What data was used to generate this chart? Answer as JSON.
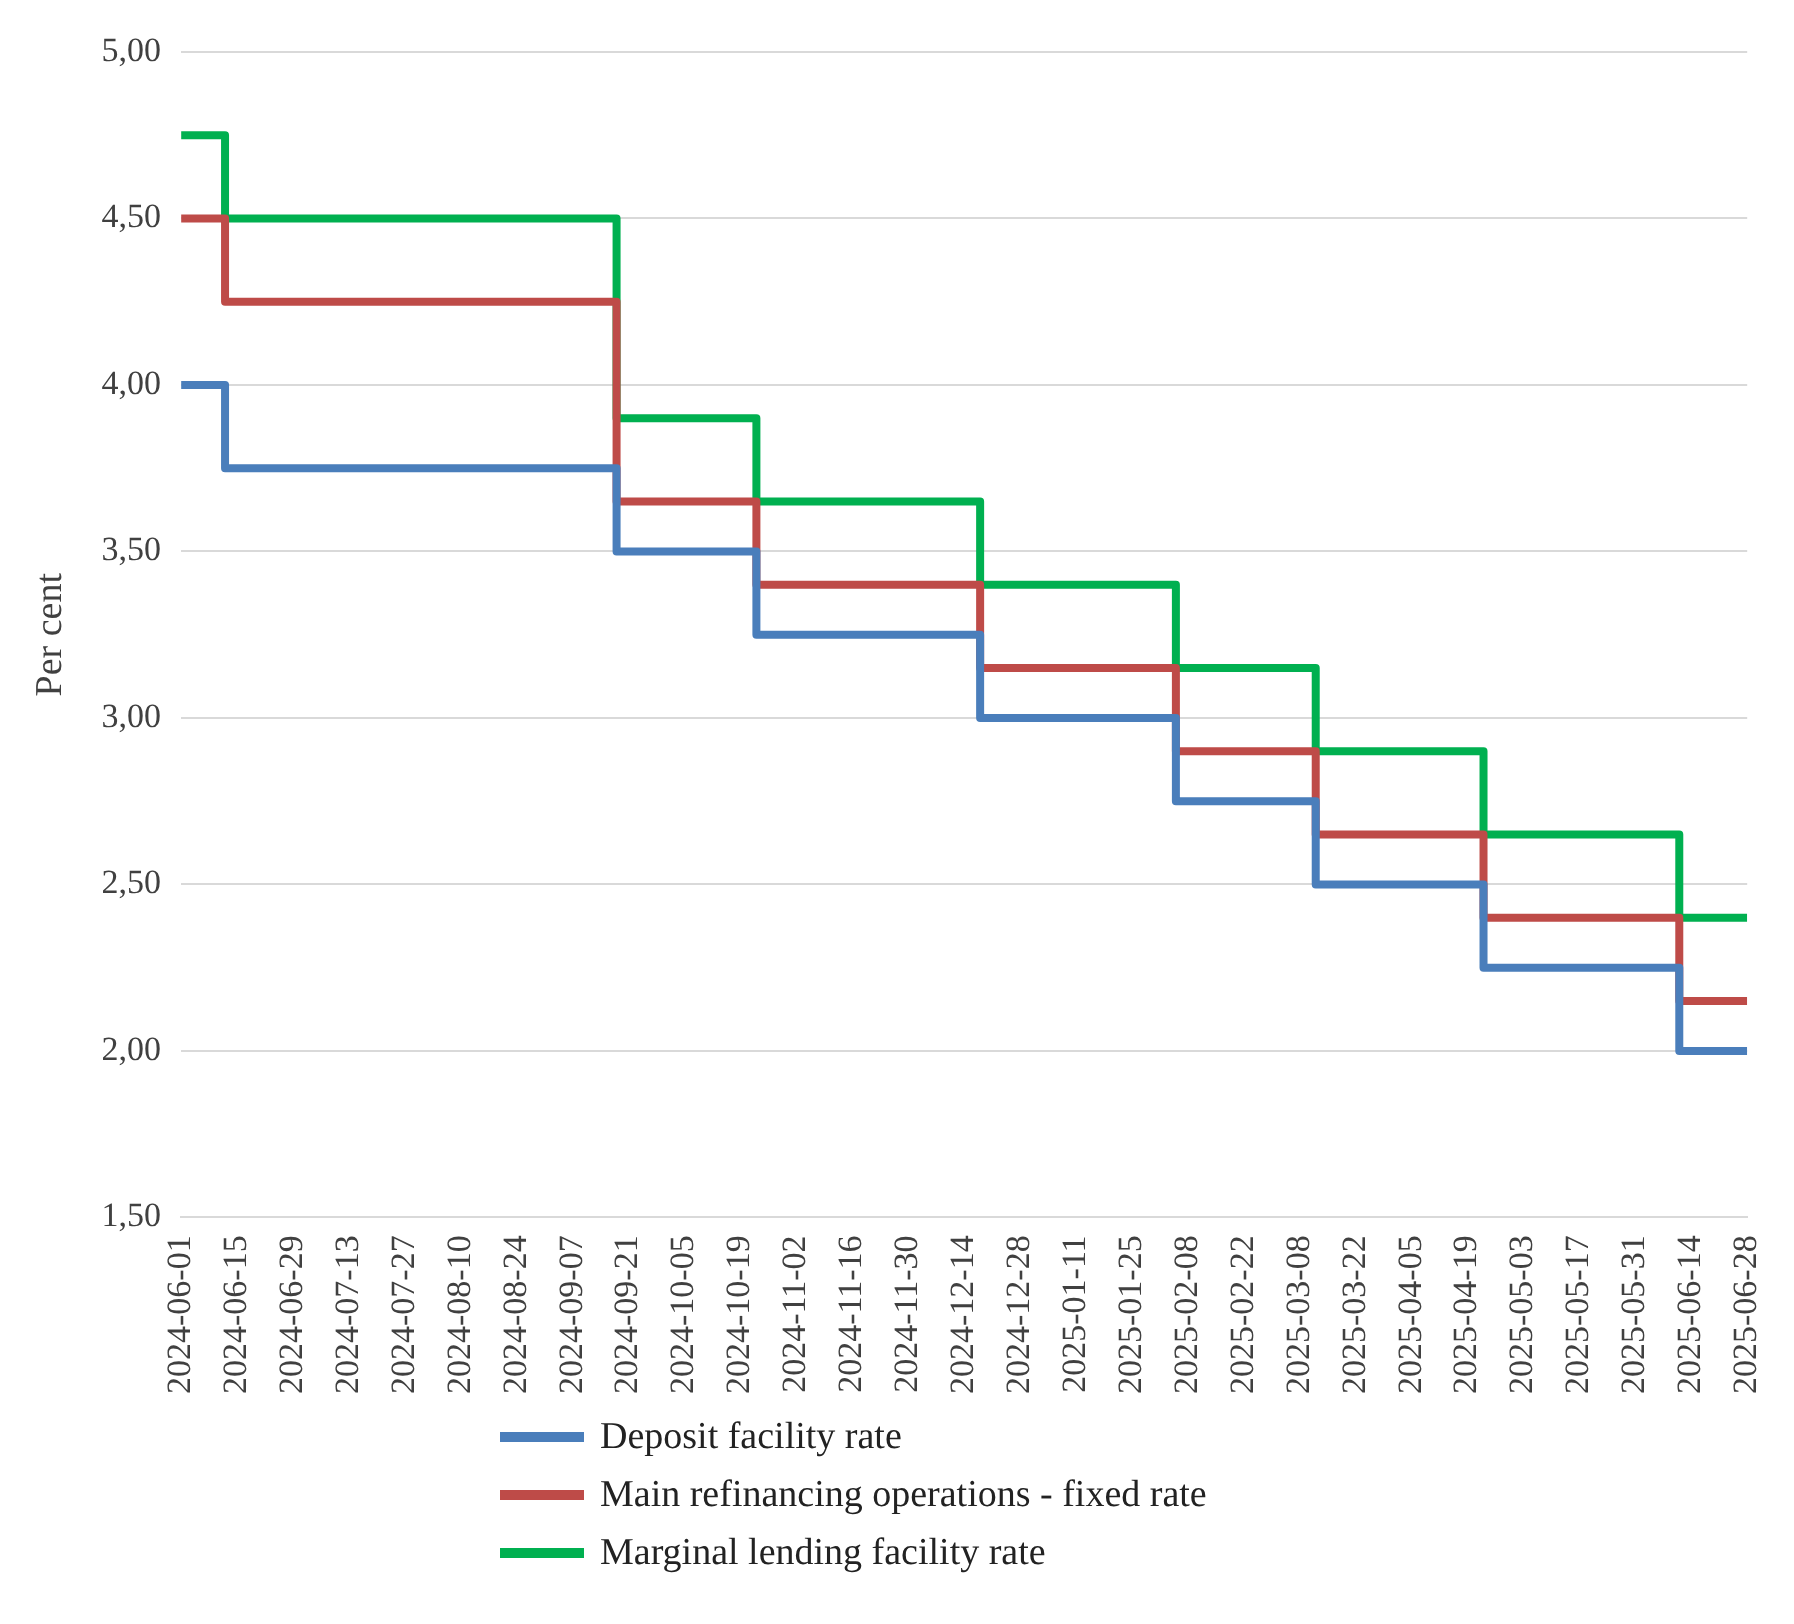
{
  "chart_data": {
    "type": "step",
    "ylabel": "Per cent",
    "xlim": [
      "2024-06-01",
      "2025-06-28"
    ],
    "xticks": [
      "2024-06-01",
      "2024-06-15",
      "2024-06-29",
      "2024-07-13",
      "2024-07-27",
      "2024-08-10",
      "2024-08-24",
      "2024-09-07",
      "2024-09-21",
      "2024-10-05",
      "2024-10-19",
      "2024-11-02",
      "2024-11-16",
      "2024-11-30",
      "2024-12-14",
      "2024-12-28",
      "2025-01-11",
      "2025-01-25",
      "2025-02-08",
      "2025-02-22",
      "2025-03-08",
      "2025-03-22",
      "2025-04-05",
      "2025-04-19",
      "2025-05-03",
      "2025-05-17",
      "2025-05-31",
      "2025-06-14",
      "2025-06-28"
    ],
    "ylim": [
      1.5,
      5.0
    ],
    "yticks": [
      {
        "value": 1.5,
        "label": "1,50"
      },
      {
        "value": 2.0,
        "label": "2,00"
      },
      {
        "value": 2.5,
        "label": "2,50"
      },
      {
        "value": 3.0,
        "label": "3,00"
      },
      {
        "value": 3.5,
        "label": "3,50"
      },
      {
        "value": 4.0,
        "label": "4,00"
      },
      {
        "value": 4.5,
        "label": "4,50"
      },
      {
        "value": 5.0,
        "label": "5,00"
      }
    ],
    "x": [
      "2024-06-01",
      "2024-06-12",
      "2024-09-18",
      "2024-10-23",
      "2024-12-18",
      "2025-02-05",
      "2025-03-12",
      "2025-04-23",
      "2025-06-11",
      "2025-06-28"
    ],
    "series": [
      {
        "name": "Deposit facility rate",
        "color": "#4a7ebb",
        "values": [
          4.0,
          3.75,
          3.5,
          3.25,
          3.0,
          2.75,
          2.5,
          2.25,
          2.0,
          2.0
        ]
      },
      {
        "name": "Main refinancing operations - fixed rate",
        "color": "#be4b48",
        "values": [
          4.5,
          4.25,
          3.65,
          3.4,
          3.15,
          2.9,
          2.65,
          2.4,
          2.15,
          2.15
        ]
      },
      {
        "name": "Marginal lending facility rate",
        "color": "#00b050",
        "values": [
          4.75,
          4.5,
          3.9,
          3.65,
          3.4,
          3.15,
          2.9,
          2.65,
          2.4,
          2.4
        ]
      }
    ],
    "grid": "y",
    "legend": "bottom",
    "marker": "none",
    "line_style": "solid"
  }
}
